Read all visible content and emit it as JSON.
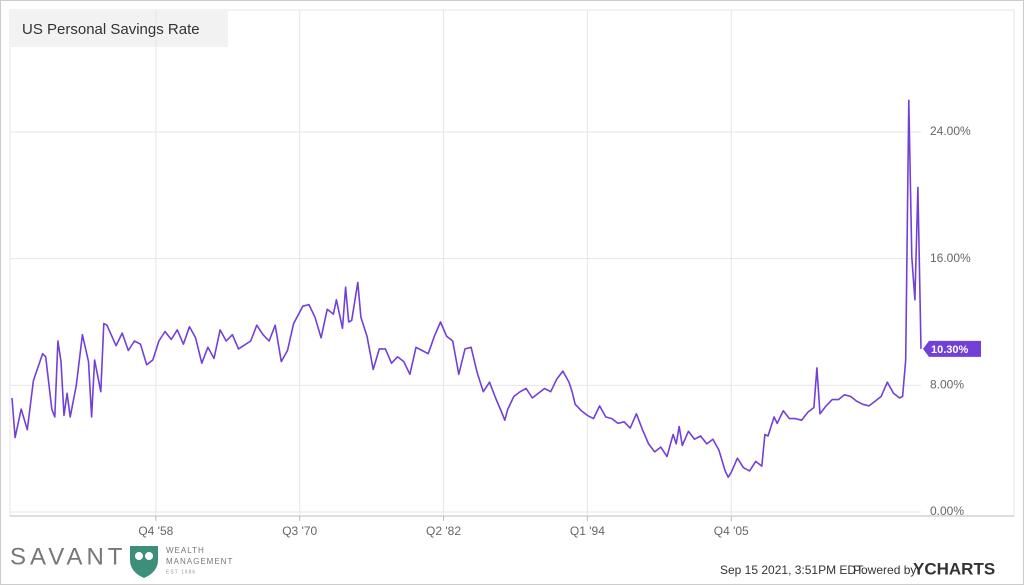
{
  "chart_data": {
    "type": "line",
    "title": "US Personal Savings Rate",
    "x": [
      "1947 Q1",
      "1947 Q2",
      "1947 Q4",
      "1948 Q2",
      "1948 Q4",
      "1949 Q3",
      "1949 Q4",
      "1950 Q2",
      "1950 Q3",
      "1950 Q4",
      "1951 Q1",
      "1951 Q2",
      "1951 Q3",
      "1951 Q4",
      "1952 Q2",
      "1952 Q4",
      "1953 Q2",
      "1953 Q3",
      "1953 Q4",
      "1954 Q2",
      "1954 Q3",
      "1954 Q4",
      "1955 Q3",
      "1956 Q1",
      "1956 Q3",
      "1957 Q1",
      "1957 Q3",
      "1958 Q1",
      "1958 Q3",
      "1959 Q1",
      "1959 Q3",
      "1960 Q1",
      "1960 Q3",
      "1961 Q1",
      "1961 Q3",
      "1962 Q1",
      "1962 Q3",
      "1963 Q1",
      "1963 Q3",
      "1964 Q1",
      "1964 Q3",
      "1965 Q1",
      "1965 Q3",
      "1966 Q3",
      "1967 Q1",
      "1967 Q3",
      "1968 Q1",
      "1968 Q3",
      "1969 Q1",
      "1969 Q3",
      "1970 Q1",
      "1970 Q4",
      "1971 Q2",
      "1971 Q4",
      "1972 Q2",
      "1972 Q4",
      "1973 Q2",
      "1973 Q3",
      "1974 Q1",
      "1974 Q2",
      "1974 Q3",
      "1974 Q4",
      "1975 Q2",
      "1975 Q3",
      "1976 Q1",
      "1976 Q3",
      "1977 Q1",
      "1977 Q3",
      "1978 Q1",
      "1978 Q3",
      "1979 Q1",
      "1979 Q3",
      "1980 Q1",
      "1980 Q3",
      "1981 Q1",
      "1981 Q3",
      "1982 Q1",
      "1982 Q3",
      "1983 Q1",
      "1983 Q3",
      "1984 Q1",
      "1984 Q3",
      "1985 Q1",
      "1985 Q3",
      "1986 Q1",
      "1986 Q3",
      "1987 Q1",
      "1987 Q2",
      "1987 Q3",
      "1988 Q1",
      "1988 Q3",
      "1989 Q1",
      "1989 Q3",
      "1990 Q1",
      "1990 Q3",
      "1991 Q1",
      "1991 Q3",
      "1992 Q1",
      "1992 Q3",
      "1992 Q4",
      "1993 Q1",
      "1993 Q3",
      "1994 Q1",
      "1994 Q3",
      "1995 Q1",
      "1995 Q3",
      "1996 Q1",
      "1996 Q3",
      "1997 Q1",
      "1997 Q3",
      "1998 Q1",
      "1998 Q3",
      "1999 Q1",
      "1999 Q3",
      "2000 Q1",
      "2000 Q3",
      "2001 Q1",
      "2001 Q2",
      "2001 Q3",
      "2001 Q4",
      "2002 Q2",
      "2002 Q4",
      "2003 Q2",
      "2003 Q4",
      "2004 Q2",
      "2004 Q4",
      "2005 Q2",
      "2005 Q3",
      "2005 Q4",
      "2006 Q2",
      "2006 Q4",
      "2007 Q2",
      "2007 Q4",
      "2008 Q2",
      "2008 Q3",
      "2008 Q4",
      "2009 Q2",
      "2009 Q3",
      "2010 Q1",
      "2010 Q3",
      "2011 Q1",
      "2011 Q3",
      "2012 Q1",
      "2012 Q3",
      "2012 Q4",
      "2013 Q1",
      "2013 Q3",
      "2014 Q1",
      "2014 Q3",
      "2015 Q1",
      "2015 Q3",
      "2016 Q1",
      "2016 Q3",
      "2017 Q1",
      "2017 Q3",
      "2018 Q1",
      "2018 Q3",
      "2019 Q1",
      "2019 Q3",
      "2019 Q4",
      "2020 Q1",
      "2020 Q2",
      "2020 Q3",
      "2020 Q4",
      "2021 Q1",
      "2021 Q2"
    ],
    "series": [
      {
        "name": "US Personal Savings Rate",
        "color": "#7240d8",
        "last_value_label": "10.30%",
        "values": [
          7.2,
          4.7,
          6.5,
          5.2,
          8.3,
          10,
          9.8,
          6.5,
          6.0,
          10.8,
          9.5,
          6.1,
          7.5,
          6.0,
          8,
          11.2,
          9.5,
          6.0,
          9.6,
          7.6,
          11.9,
          11.8,
          10.5,
          11.3,
          10.2,
          10.8,
          10.6,
          9.3,
          9.6,
          10.8,
          11.4,
          10.9,
          11.5,
          10.6,
          11.7,
          11,
          9.4,
          10.4,
          9.7,
          11.5,
          10.8,
          11.2,
          10.3,
          10.8,
          11.8,
          11.2,
          10.8,
          11.8,
          9.5,
          10.2,
          11.9,
          13,
          13.1,
          12.3,
          11,
          12.8,
          12.5,
          13.4,
          11.6,
          14.2,
          12,
          12.1,
          14.5,
          12.3,
          11.1,
          9.0,
          10.3,
          10.3,
          9.4,
          9.8,
          9.5,
          8.7,
          10.4,
          10.2,
          10.0,
          11.1,
          12,
          11.1,
          10.8,
          8.7,
          10.3,
          10.4,
          8.8,
          7.6,
          8.2,
          7.2,
          6.3,
          5.8,
          6.5,
          7.3,
          7.6,
          7.8,
          7.2,
          7.5,
          7.8,
          7.6,
          8.4,
          8.9,
          8.2,
          7.6,
          6.8,
          6.4,
          6.1,
          5.9,
          6.7,
          6.0,
          5.9,
          5.6,
          5.7,
          5.3,
          6.2,
          5.2,
          4.3,
          3.8,
          4.1,
          3.5,
          4.9,
          4.3,
          5.4,
          4.2,
          5.1,
          4.6,
          4.8,
          4.3,
          4.6,
          3.9,
          2.6,
          2.2,
          2.5,
          3.4,
          2.8,
          2.6,
          3.2,
          2.9,
          4.9,
          4.8,
          6.0,
          5.6,
          6.4,
          5.9,
          5.9,
          5.8,
          6.3,
          6.6,
          9.1,
          6.2,
          6.7,
          7.1,
          7.1,
          7.4,
          7.3,
          7.0,
          6.8,
          6.7,
          7.0,
          7.3,
          8.2,
          7.5,
          7.2,
          7.3,
          9.6,
          26.0,
          16.1,
          13.4,
          20.5,
          10.3
        ]
      }
    ],
    "xlim": [
      "1947 Q1",
      "2021 Q2"
    ],
    "xticks": [
      {
        "value": "1958 Q4",
        "label": "Q4 '58"
      },
      {
        "value": "1970 Q3",
        "label": "Q3 '70"
      },
      {
        "value": "1982 Q2",
        "label": "Q2 '82"
      },
      {
        "value": "1994 Q1",
        "label": "Q1 '94"
      },
      {
        "value": "2005 Q4",
        "label": "Q4 '05"
      }
    ],
    "ylim": [
      -0.25,
      31.7
    ],
    "yticks": [
      {
        "value": 0,
        "label": "0.00%"
      },
      {
        "value": 8,
        "label": "8.00%"
      },
      {
        "value": 16,
        "label": "16.00%"
      },
      {
        "value": 24,
        "label": "24.00%"
      }
    ],
    "grid": true
  },
  "footer": {
    "brand": "SAVANT",
    "brand_line1": "WEALTH",
    "brand_line2": "MANAGEMENT",
    "brand_line3": "EST 1986",
    "timestamp": "Sep 15 2021, 3:51PM EDT.",
    "powered": "Powered by",
    "provider": "YCHARTS"
  }
}
